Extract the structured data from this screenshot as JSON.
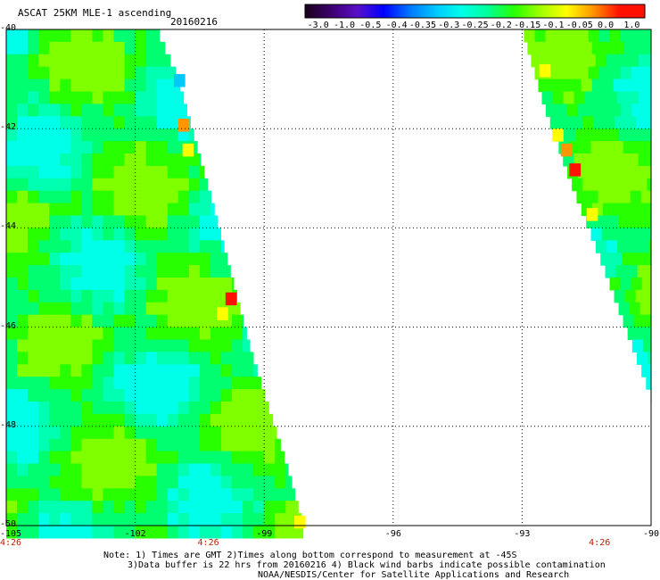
{
  "header": {
    "title": "ASCAT 25KM MLE-1 ascending",
    "date": "20160216"
  },
  "colorbar": {
    "labels": [
      "-3.0",
      "-1.0",
      "-0.5",
      "-0.4",
      "-0.35",
      "-0.3",
      "-0.25",
      "-0.2",
      "-0.15",
      "-0.1",
      "-0.05",
      "0.0",
      "1.0"
    ],
    "colors": [
      "#1a001a",
      "#3d006e",
      "#5a10c8",
      "#0000ff",
      "#0078ff",
      "#00c8ff",
      "#00ffe8",
      "#00ff96",
      "#28ff00",
      "#a0ff00",
      "#ffff00",
      "#ff9600",
      "#ff1000"
    ]
  },
  "map": {
    "lon_range": [
      -105,
      -90
    ],
    "lat_range": [
      -50,
      -40
    ],
    "x_ticks": [
      "-105",
      "-102",
      "-99",
      "-96",
      "-93",
      "-90"
    ],
    "y_ticks": [
      "-40",
      "-42",
      "-44",
      "-46",
      "-48",
      "-50"
    ],
    "time_labels": [
      "4:26",
      "4:26",
      "4:26"
    ],
    "swaths": [
      {
        "name": "west-swath",
        "edge": [
          [
            -101.5,
            -40
          ],
          [
            -101.0,
            -41.0
          ],
          [
            -100.2,
            -43.5
          ],
          [
            -99.3,
            -46.5
          ],
          [
            -98.4,
            -49.0
          ],
          [
            -98.1,
            -50
          ]
        ],
        "highlights": [
          {
            "lon": -101.0,
            "lat": -41.8,
            "value": -0.05
          },
          {
            "lon": -100.9,
            "lat": -42.3,
            "value": -0.1
          },
          {
            "lon": -101.1,
            "lat": -40.9,
            "value": -0.35
          },
          {
            "lon": -100.1,
            "lat": -45.6,
            "value": -0.1
          },
          {
            "lon": -99.9,
            "lat": -45.3,
            "value": 0.0
          },
          {
            "lon": -98.3,
            "lat": -49.8,
            "value": -0.1
          }
        ]
      },
      {
        "name": "east-swath",
        "edge": [
          [
            -93.0,
            -40
          ],
          [
            -92.5,
            -41.5
          ],
          [
            -91.9,
            -43.0
          ],
          [
            -91.1,
            -44.8
          ],
          [
            -90.6,
            -46.0
          ],
          [
            -90.0,
            -47.4
          ]
        ],
        "highlights": [
          {
            "lon": -92.1,
            "lat": -42.3,
            "value": -0.05
          },
          {
            "lon": -91.9,
            "lat": -42.7,
            "value": 0.0
          },
          {
            "lon": -92.3,
            "lat": -42.0,
            "value": -0.1
          },
          {
            "lon": -91.5,
            "lat": -43.6,
            "value": -0.1
          },
          {
            "lon": -92.6,
            "lat": -40.7,
            "value": -0.1
          }
        ]
      }
    ]
  },
  "notes": {
    "line1": "Note: 1) Times are GMT 2)Times along bottom correspond to measurement at -45S",
    "line2": "3)Data buffer is 22 hrs from 20160216 4) Black wind barbs indicate possible contamination",
    "line3": "NOAA/NESDIS/Center for Satellite Applications and Research"
  }
}
